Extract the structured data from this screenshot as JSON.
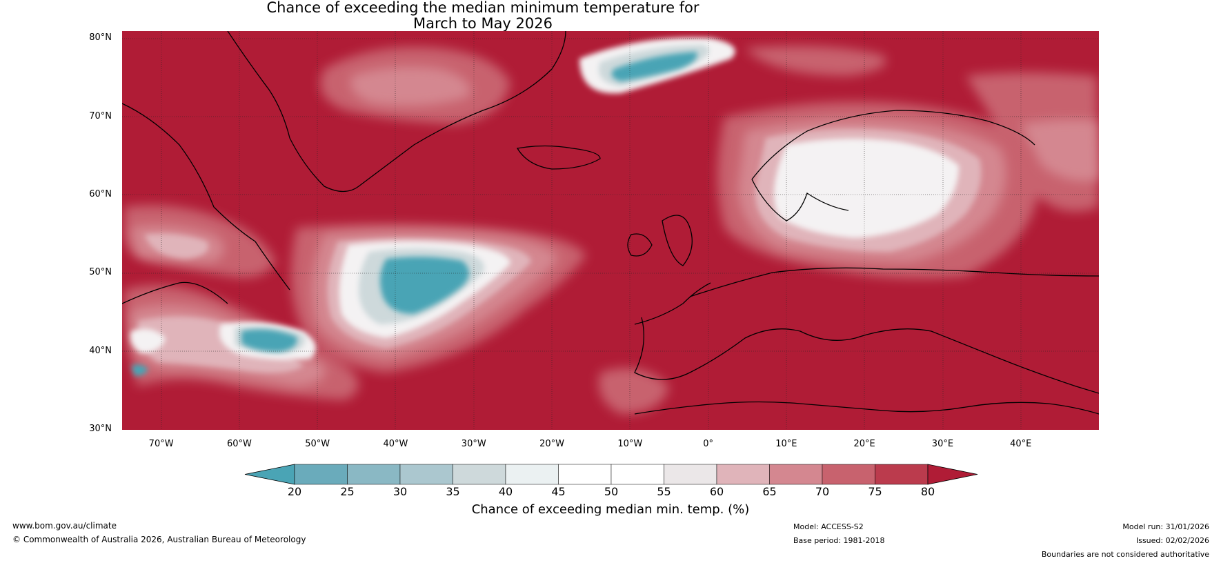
{
  "title": {
    "line1": "Chance of exceeding the median minimum temperature for",
    "line2": "March to May 2026"
  },
  "map": {
    "lat_labels": [
      "80°N",
      "70°N",
      "60°N",
      "50°N",
      "40°N",
      "30°N"
    ],
    "lon_labels": [
      "70°W",
      "60°W",
      "50°W",
      "40°W",
      "30°W",
      "20°W",
      "10°W",
      "0°",
      "10°E",
      "20°E",
      "30°E",
      "40°E"
    ],
    "lat_values": [
      80,
      70,
      60,
      50,
      40,
      30
    ],
    "lon_values": [
      -70,
      -60,
      -50,
      -40,
      -30,
      -20,
      -10,
      0,
      10,
      20,
      30,
      40
    ],
    "lon_range": [
      -75,
      50
    ],
    "lat_range": [
      30,
      81
    ]
  },
  "colorbar": {
    "label": "Chance of exceeding median min. temp. (%)",
    "ticks": [
      "20",
      "25",
      "30",
      "35",
      "40",
      "45",
      "50",
      "55",
      "60",
      "65",
      "70",
      "75",
      "80"
    ],
    "colors": [
      "#4aa4b5",
      "#6aabbb",
      "#8ab8c4",
      "#abc7cf",
      "#ced9db",
      "#ebf1f2",
      "#ffffff",
      "#ffffff",
      "#ebe7e8",
      "#e0b4ba",
      "#d48790",
      "#c8626e",
      "#bb3b4d",
      "#b01c36"
    ]
  },
  "footer": {
    "website": "www.bom.gov.au/climate",
    "copyright": "© Commonwealth of Australia 2026, Australian Bureau of Meteorology",
    "model": "Model: ACCESS-S2",
    "base_period": "Base period: 1981-2018",
    "model_run": "Model run: 31/01/2026",
    "issued": "Issued: 02/02/2026",
    "disclaimer": "Boundaries are not considered authoritative"
  }
}
